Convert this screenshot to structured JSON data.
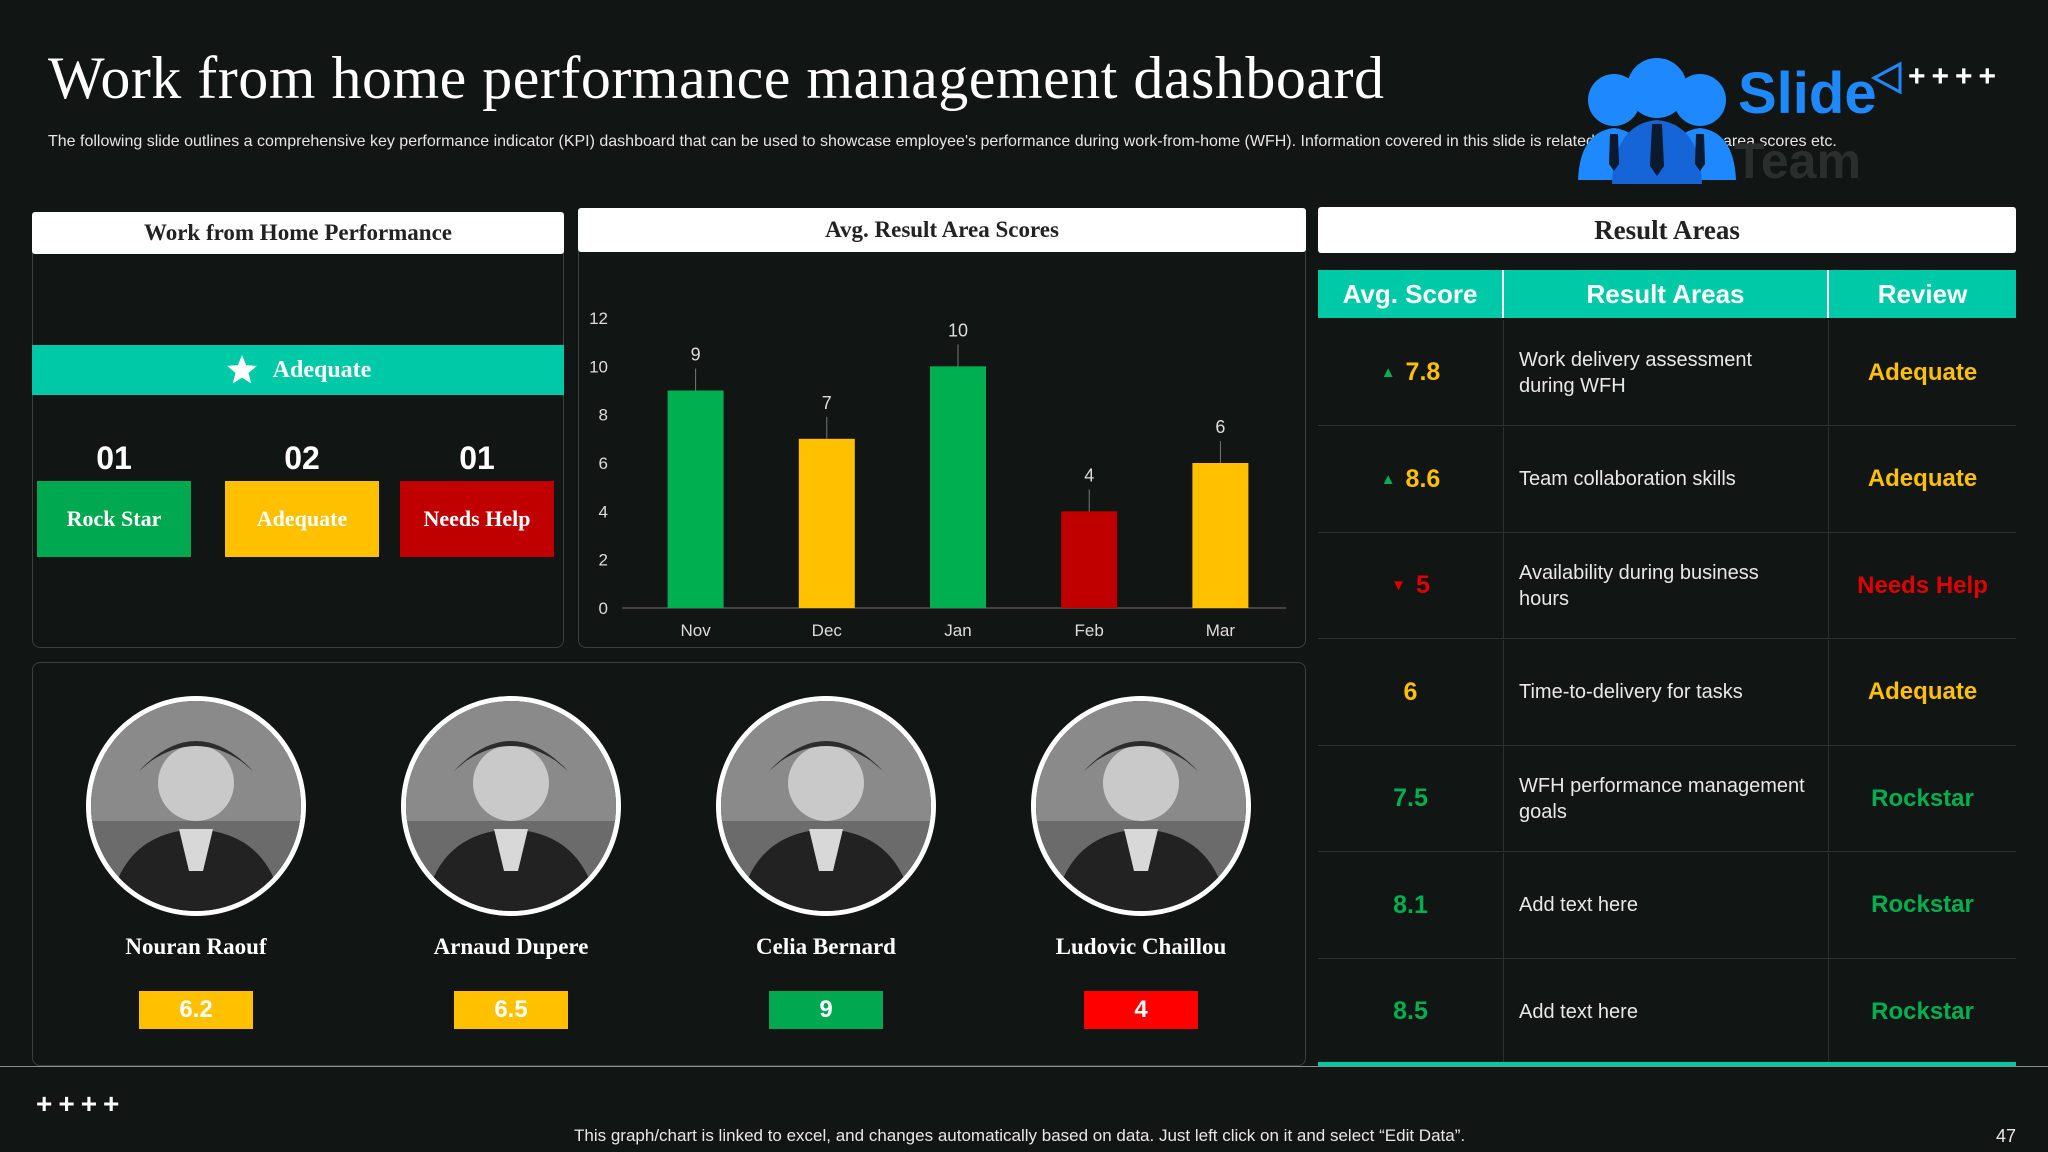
{
  "header": {
    "title": "Work from home performance management dashboard",
    "subtitle": "The following slide outlines a comprehensive key performance indicator (KPI) dashboard that can be used to showcase employee's performance during work-from-home (WFH). Information covered in this slide is related to average result area scores etc."
  },
  "logo": {
    "word": "Slide",
    "team": "Team",
    "crosses": "++++"
  },
  "wfh": {
    "title": "Work from Home Performance",
    "banner": "Adequate",
    "counts": [
      "01",
      "02",
      "01"
    ],
    "statuses": [
      "Rock Star",
      "Adequate",
      "Needs Help"
    ],
    "colors": [
      "#00a850",
      "#ffc000",
      "#c00000"
    ]
  },
  "chart_panel": {
    "title": "Avg. Result Area Scores"
  },
  "chart_data": {
    "type": "bar",
    "title": "Avg. Result Area Scores",
    "categories": [
      "Nov",
      "Dec",
      "Jan",
      "Feb",
      "Mar"
    ],
    "values": [
      9,
      7,
      10,
      4,
      6
    ],
    "colors": [
      "#00b050",
      "#ffc000",
      "#00b050",
      "#c00000",
      "#ffc000"
    ],
    "ylim": [
      0,
      12
    ],
    "yticks": [
      0,
      2,
      4,
      6,
      8,
      10,
      12
    ],
    "xlabel": "",
    "ylabel": ""
  },
  "result_areas": {
    "title": "Result Areas",
    "headers": [
      "Avg. Score",
      "Result Areas",
      "Review"
    ],
    "rows": [
      {
        "score": "7.8",
        "trend": "up",
        "area": "Work delivery assessment during WFH",
        "review": "Adequate"
      },
      {
        "score": "8.6",
        "trend": "up",
        "area": "Team collaboration skills",
        "review": "Adequate"
      },
      {
        "score": "5",
        "trend": "down",
        "area": "Availability during business hours",
        "review": "Needs Help"
      },
      {
        "score": "6",
        "trend": "",
        "area": "Time-to-delivery  for tasks",
        "review": "Adequate"
      },
      {
        "score": "7.5",
        "trend": "",
        "area": "WFH performance management goals",
        "review": "Rockstar"
      },
      {
        "score": "8.1",
        "trend": "",
        "area": "Add text here",
        "review": "Rockstar"
      },
      {
        "score": "8.5",
        "trend": "",
        "area": "Add text here",
        "review": "Rockstar"
      }
    ],
    "review_colors": {
      "Adequate": "#ffc000",
      "Needs Help": "#e00000",
      "Rockstar": "#00b050"
    },
    "score_colors": [
      "#ffc000",
      "#ffc000",
      "#e00000",
      "#ffc000",
      "#00b050",
      "#00b050",
      "#00b050"
    ]
  },
  "people": [
    {
      "name": "Nouran Raouf",
      "score": "6.2",
      "color": "#ffc000"
    },
    {
      "name": "Arnaud Dupere",
      "score": "6.5",
      "color": "#ffc000"
    },
    {
      "name": "Celia Bernard",
      "score": "9",
      "color": "#00a850"
    },
    {
      "name": "Ludovic Chaillou",
      "score": "4",
      "color": "#ff0000"
    }
  ],
  "footer": {
    "crosses": "++++",
    "note": "This graph/chart is linked to excel, and changes automatically based on data. Just left click on it and select “Edit Data”.",
    "page": "47"
  }
}
